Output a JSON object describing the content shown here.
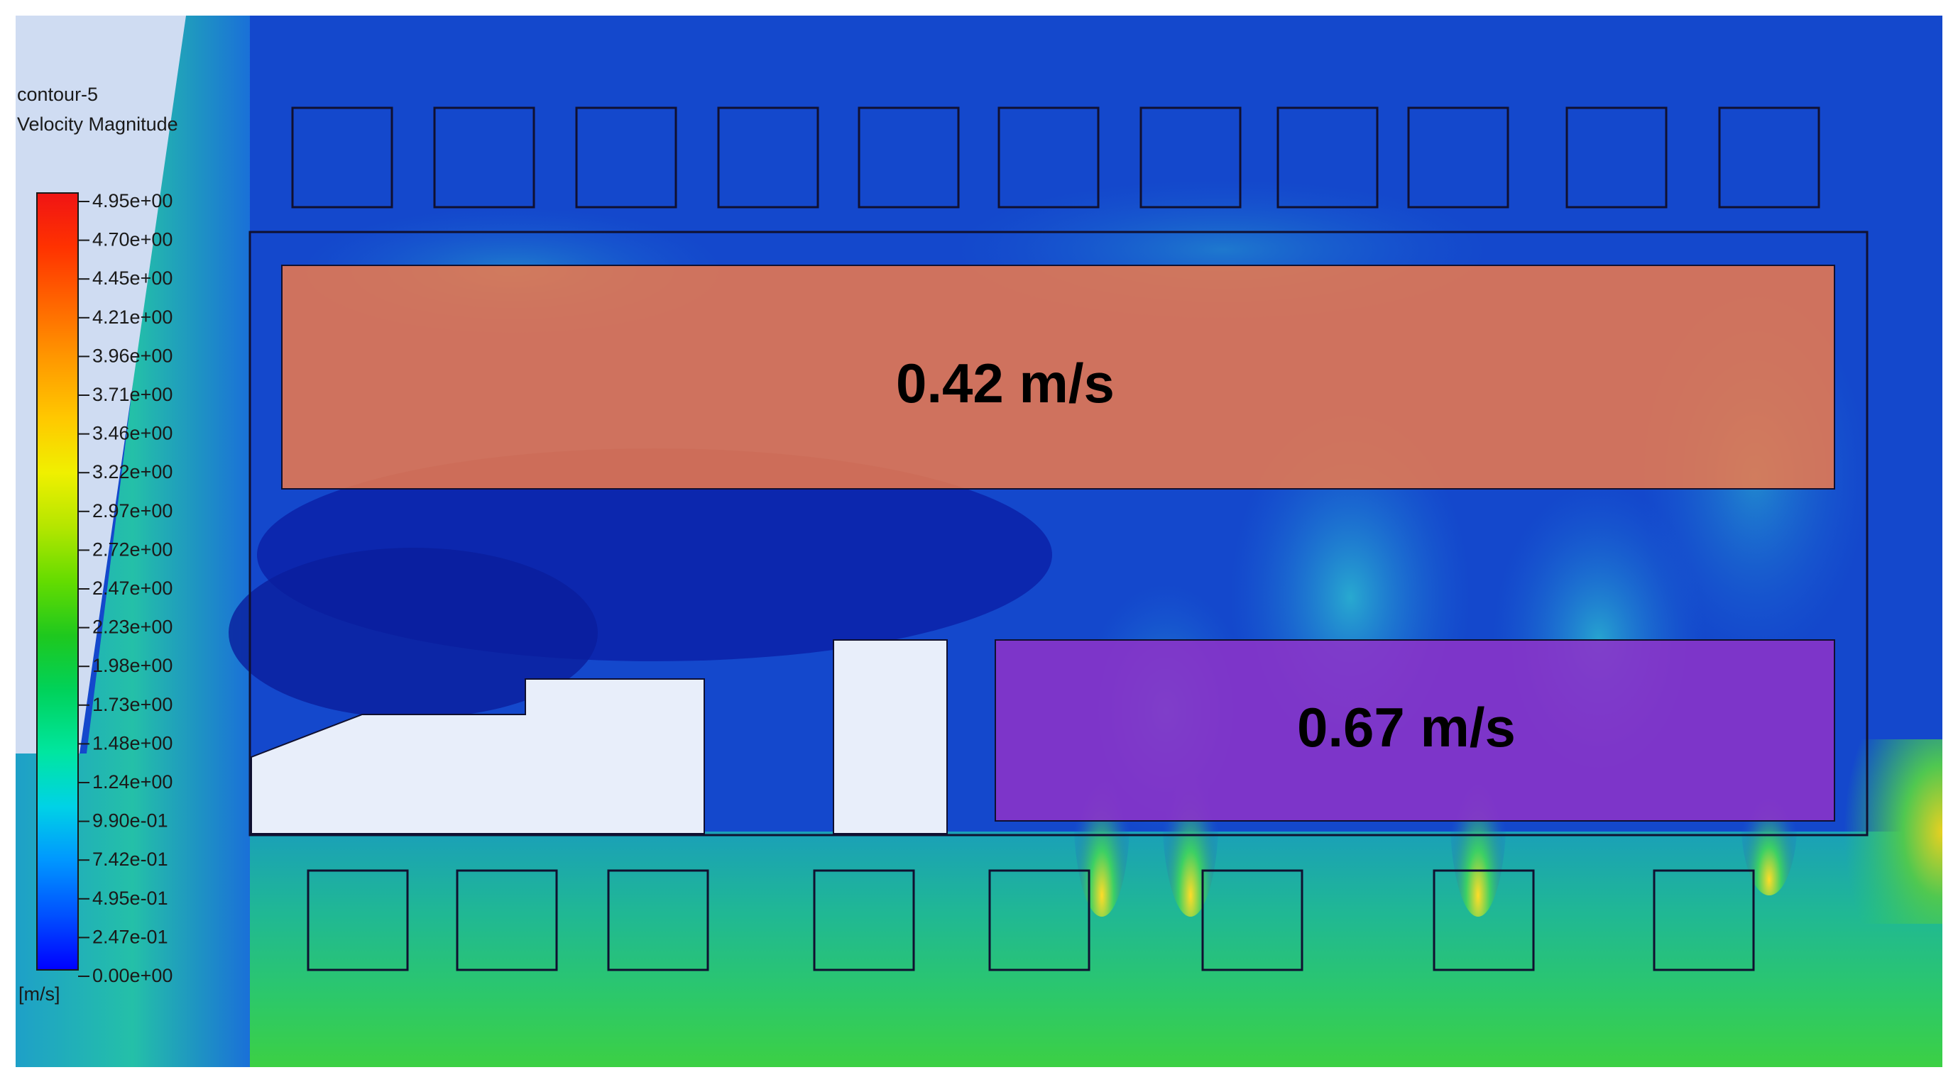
{
  "legend": {
    "title_line1": "contour-5",
    "title_line2": "Velocity Magnitude",
    "unit": "[m/s]",
    "colormap": [
      "#0000ff",
      "#0050ff",
      "#0096ff",
      "#00d2e6",
      "#00e6a0",
      "#00d25a",
      "#1ec81e",
      "#64dc00",
      "#b4e600",
      "#f0f000",
      "#ffc800",
      "#ff9600",
      "#ff6400",
      "#ff3200",
      "#f01414"
    ],
    "ticks": [
      "4.95e+00",
      "4.70e+00",
      "4.45e+00",
      "4.21e+00",
      "3.96e+00",
      "3.71e+00",
      "3.46e+00",
      "3.22e+00",
      "2.97e+00",
      "2.72e+00",
      "2.47e+00",
      "2.23e+00",
      "1.98e+00",
      "1.73e+00",
      "1.48e+00",
      "1.24e+00",
      "9.90e-01",
      "7.42e-01",
      "4.95e-01",
      "2.47e-01",
      "0.00e+00"
    ]
  },
  "zones": {
    "upper_value": "0.42 m/s",
    "upper_color": "#f07a4a",
    "lower_value": "0.67 m/s",
    "lower_color": "#8c32c8"
  },
  "colors": {
    "background_blue": "#1040c8",
    "low_speed_navy": "#0a1fa0",
    "jet_green": "#2cc86a",
    "obstacle_fill": "#e8eefa"
  }
}
